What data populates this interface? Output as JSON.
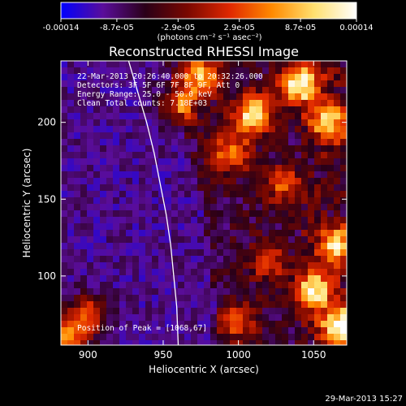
{
  "colorbar": {
    "tick_labels": [
      "-0.00014",
      "-8.7e-05",
      "-2.9e-05",
      "2.9e-05",
      "8.7e-05",
      "0.00014"
    ],
    "tick_values": [
      -0.00014,
      -8.7e-05,
      -2.9e-05,
      2.9e-05,
      8.7e-05,
      0.00014
    ],
    "units": "(photons cm⁻² s⁻¹ asec⁻²)",
    "colors": [
      "#0000ff",
      "#5a0d9a",
      "#2a0018",
      "#7a0800",
      "#e02800",
      "#ff8a00",
      "#ffe070",
      "#ffffff"
    ]
  },
  "annotations": {
    "time_range": "22-Mar-2013 20:26:40.000 to 20:32:26.000",
    "detectors": "Detectors: 3F 5F 6F 7F 8F 9F, Att 0",
    "energy_range": "Energy Range: 25.0 - 50.0 keV",
    "algorithm": "Clean    Total counts: 7.18E+03",
    "peak": "Position of Peak = [1068,67]"
  },
  "footer": {
    "timestamp": "29-Mar-2013 15:27"
  },
  "chart_data": {
    "type": "heatmap",
    "title": "Reconstructed RHESSI Image",
    "xlabel": "Heliocentric X (arcsec)",
    "ylabel": "Heliocentric Y (arcsec)",
    "xlim": [
      882,
      1072
    ],
    "ylim": [
      55,
      240
    ],
    "xticks": [
      900,
      950,
      1000,
      1050
    ],
    "yticks": [
      100,
      150,
      200
    ],
    "zlim": [
      -0.00014,
      0.00014
    ],
    "peak_position": [
      1068,
      67
    ],
    "limb_curve": [
      [
        927,
        240
      ],
      [
        933,
        220
      ],
      [
        939,
        200
      ],
      [
        944,
        180
      ],
      [
        948,
        160
      ],
      [
        952,
        140
      ],
      [
        955,
        120
      ],
      [
        957,
        100
      ],
      [
        959,
        80
      ],
      [
        960,
        55
      ]
    ]
  }
}
